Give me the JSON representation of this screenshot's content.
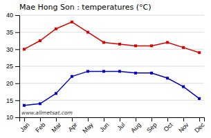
{
  "chart_data": {
    "type": "line",
    "title": "Mae Hong Son : temperatures (°C)",
    "categories": [
      "Jan",
      "Feb",
      "Mar",
      "Apr",
      "May",
      "Jun",
      "Jul",
      "Aug",
      "Sep",
      "Oct",
      "Nov",
      "Dec"
    ],
    "series": [
      {
        "color": "#dd0000",
        "marker": "square",
        "values": [
          30.0,
          32.5,
          36.0,
          38.0,
          35.0,
          32.0,
          31.5,
          31.0,
          31.0,
          32.0,
          30.5,
          29.0
        ]
      },
      {
        "color": "#0000cc",
        "marker": "square",
        "values": [
          13.5,
          14.0,
          17.0,
          22.0,
          23.5,
          23.5,
          23.5,
          23.0,
          23.0,
          21.5,
          19.0,
          15.5
        ]
      }
    ],
    "ylim": [
      10,
      40
    ],
    "yticks": [
      10,
      15,
      20,
      25,
      30,
      35,
      40
    ],
    "grid": true,
    "annotations": [
      "www.allmetsat.com"
    ]
  }
}
